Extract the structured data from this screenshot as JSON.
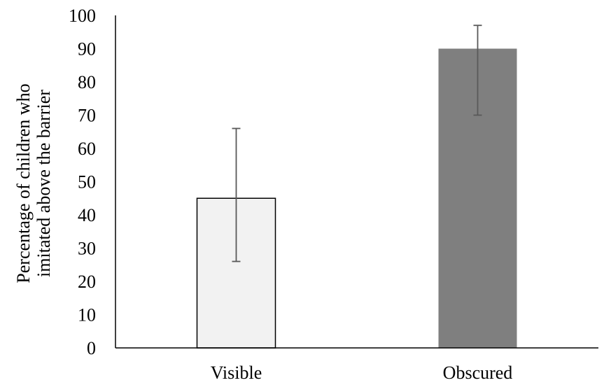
{
  "chart_data": {
    "type": "bar",
    "title": "",
    "xlabel": "",
    "ylabel_lines": [
      "Percentage of children who",
      "imitated above the barrier"
    ],
    "categories": [
      "Visible",
      "Obscured"
    ],
    "values": [
      45,
      90
    ],
    "error_bars": [
      {
        "low": 26,
        "high": 66
      },
      {
        "low": 70,
        "high": 97
      }
    ],
    "ylim": [
      0,
      100
    ],
    "yticks": [
      "0",
      "10",
      "20",
      "30",
      "40",
      "50",
      "60",
      "70",
      "80",
      "90",
      "100"
    ],
    "grid": false,
    "legend": "none",
    "colors": {
      "bar_fills": [
        "#f2f2f2",
        "#7f7f7f"
      ],
      "bar_strokes": [
        "#000000",
        "#7f7f7f"
      ],
      "axis": "#000000",
      "error_bar": "#595959"
    }
  }
}
